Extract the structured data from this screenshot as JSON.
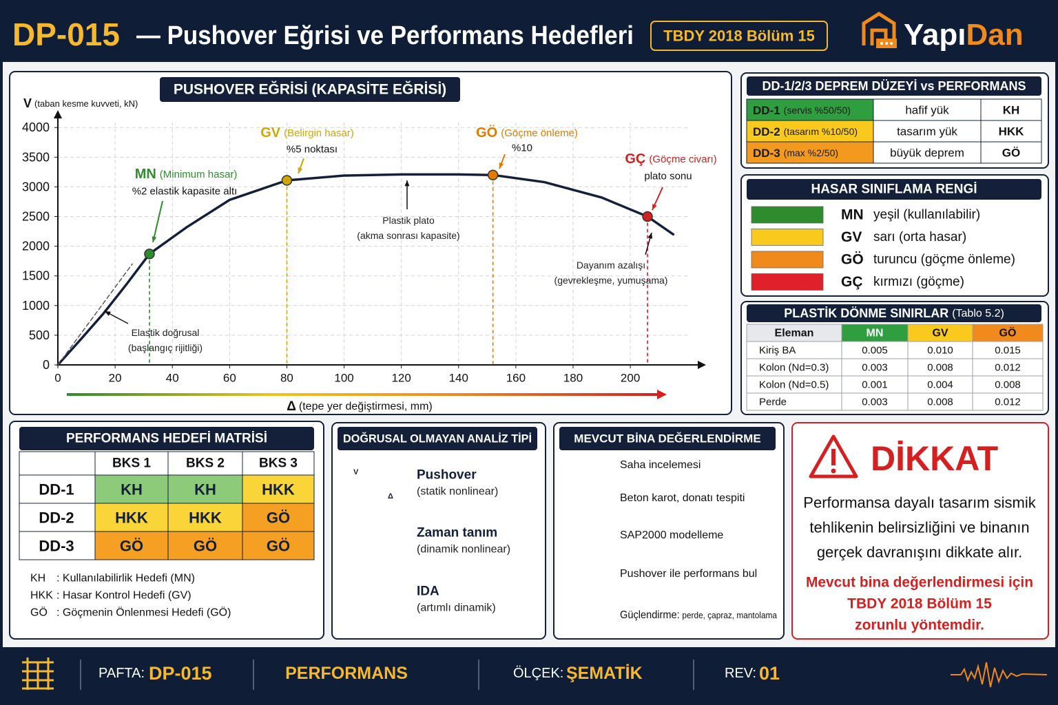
{
  "header": {
    "code": "DP-015",
    "title": "— Pushover Eğrisi ve Performans Hedefleri",
    "badge": "TBDY 2018 Bölüm 15",
    "logo": [
      "Yapı",
      "Dan"
    ]
  },
  "chart_data": {
    "type": "line",
    "title": "PUSHOVER EĞRİSİ (KAPASİTE EĞRİSİ)",
    "y_symbol": "V",
    "y_label": "(taban kesme kuvveti, kN)",
    "x_symbol": "Δ",
    "x_label": "(tepe yer değiştirmesi, mm)",
    "xlim": [
      0,
      225
    ],
    "ylim": [
      0,
      4200
    ],
    "xticks": [
      0,
      20,
      40,
      60,
      80,
      100,
      120,
      140,
      160,
      180,
      200
    ],
    "yticks": [
      0,
      500,
      1000,
      1500,
      2000,
      2500,
      3000,
      3500,
      4000
    ],
    "grid": true,
    "series": [
      {
        "color": "#14203a",
        "x": [
          0,
          8,
          16,
          24,
          32,
          45,
          60,
          80,
          100,
          120,
          140,
          152,
          170,
          190,
          206,
          215
        ],
        "values": [
          0,
          430,
          870,
          1360,
          1870,
          2320,
          2780,
          3110,
          3190,
          3210,
          3210,
          3200,
          3080,
          2820,
          2500,
          2200
        ]
      },
      {
        "color": "#555555",
        "dashed": true,
        "x": [
          0,
          26
        ],
        "values": [
          0,
          1700
        ]
      }
    ],
    "points": [
      {
        "label": "MN",
        "desc": "(Minimum hasar)",
        "note": "%2 elastik kapasite altı",
        "x": 32,
        "y": 1870,
        "color": "#2e8b2e"
      },
      {
        "label": "GV",
        "desc": "(Belirgin hasar)",
        "note": "%5 noktası",
        "x": 80,
        "y": 3110,
        "color": "#d2a600"
      },
      {
        "label": "GÖ",
        "desc": "(Göçme önleme)",
        "note": "%10",
        "x": 152,
        "y": 3200,
        "color": "#e07b00"
      },
      {
        "label": "GÇ",
        "desc": "(Göçme civarı)",
        "note": "plato sonu",
        "x": 206,
        "y": 2500,
        "color": "#d42020"
      }
    ],
    "annotations": [
      {
        "lines": [
          "Elastik doğrusal",
          "(başlangıç rijitliği)"
        ]
      },
      {
        "lines": [
          "Plastik plato",
          "(akma sonrası kapasite)"
        ]
      },
      {
        "lines": [
          "Dayanım azalışı",
          "(gevrekleşme, yumuşama)"
        ]
      }
    ]
  },
  "dd_table": {
    "title": "DD-1/2/3 DEPREM DÜZEYİ vs PERFORMANS",
    "rows": [
      {
        "code": "DD-1",
        "desc": "(servis %50/50)",
        "load": "hafif yük",
        "target": "KH",
        "color": "#2e9e3e"
      },
      {
        "code": "DD-2",
        "desc": "(tasarım %10/50)",
        "load": "tasarım yük",
        "target": "HKK",
        "color": "#f9c91e"
      },
      {
        "code": "DD-3",
        "desc": "(max %2/50)",
        "load": "büyük deprem",
        "target": "GÖ",
        "color": "#f39a1e"
      }
    ]
  },
  "damage_colors": {
    "title": "HASAR SINIFLAMA RENGİ",
    "items": [
      {
        "code": "MN",
        "text": "yeşil (kullanılabilir)",
        "color": "#2e8b2e"
      },
      {
        "code": "GV",
        "text": "sarı (orta hasar)",
        "color": "#f9c91e"
      },
      {
        "code": "GÖ",
        "text": "turuncu (göçme önleme)",
        "color": "#f08a1c"
      },
      {
        "code": "GÇ",
        "text": "kırmızı (göçme)",
        "color": "#e0202a"
      }
    ]
  },
  "rotation_limits": {
    "title": "PLASTİK DÖNME SINIRLAR",
    "note": "(Tablo 5.2)",
    "header": [
      "Eleman",
      "MN",
      "GV",
      "GÖ"
    ],
    "header_colors": [
      "#e6e8ec",
      "#2e9e3e",
      "#f9c91e",
      "#f08a1c"
    ],
    "rows": [
      [
        "Kiriş BA",
        "0.005",
        "0.010",
        "0.015"
      ],
      [
        "Kolon (Nd=0.3)",
        "0.003",
        "0.008",
        "0.012"
      ],
      [
        "Kolon (Nd=0.5)",
        "0.001",
        "0.004",
        "0.008"
      ],
      [
        "Perde",
        "0.003",
        "0.008",
        "0.012"
      ]
    ]
  },
  "target_matrix": {
    "title": "PERFORMANS HEDEFİ MATRİSİ",
    "columns": [
      "BKS 1",
      "BKS 2",
      "BKS 3"
    ],
    "rows": [
      {
        "label": "DD-1",
        "cells": [
          "KH",
          "KH",
          "HKK"
        ]
      },
      {
        "label": "DD-2",
        "cells": [
          "HKK",
          "HKK",
          "GÖ"
        ]
      },
      {
        "label": "DD-3",
        "cells": [
          "GÖ",
          "GÖ",
          "GÖ"
        ]
      }
    ],
    "cell_colors": {
      "KH": "#8dcb7a",
      "HKK": "#f9d53a",
      "GÖ": "#f5a023"
    },
    "notes": [
      {
        "abbr": "KH",
        "text": ": Kullanılabilirlik Hedefi (MN)"
      },
      {
        "abbr": "HKK",
        "text": ": Hasar Kontrol Hedefi (GV)"
      },
      {
        "abbr": "GÖ",
        "text": ": Göçmenin Önlenmesi Hedefi (GÖ)"
      }
    ]
  },
  "analysis_types": {
    "title": "DOĞRUSAL OLMAYAN ANALİZ TİPİ",
    "icon_labels": [
      "V",
      "Δ"
    ],
    "items": [
      {
        "name": "Pushover",
        "desc": "(statik nonlinear)"
      },
      {
        "name": "Zaman tanım",
        "desc": "(dinamik nonlinear)"
      },
      {
        "name": "IDA",
        "desc": "(artımlı dinamik)"
      }
    ]
  },
  "existing_building": {
    "title": "MEVCUT BİNA DEĞERLENDİRME",
    "steps": [
      {
        "text": "Saha incelemesi"
      },
      {
        "text": "Beton karot, donatı tespiti"
      },
      {
        "text": "SAP2000 modelleme"
      },
      {
        "text": "Pushover ile performans bul"
      },
      {
        "text": "Güçlendirme:",
        "detail": "perde, çapraz, mantolama"
      }
    ]
  },
  "warning": {
    "title": "DİKKAT",
    "body": [
      "Performansa dayalı tasarım sismik",
      "tehlikenin belirsizliğini ve binanın",
      "gerçek davranışını dikkate alır."
    ],
    "emphasis": [
      "Mevcut bina değerlendirmesi için",
      "TBDY 2018 Bölüm 15",
      "zorunlu yöntemdir."
    ]
  },
  "footer": {
    "sheet_label": "PAFTA:",
    "sheet": "DP-015",
    "topic": "PERFORMANS",
    "scale_label": "ÖLÇEK:",
    "scale": "ŞEMATİK",
    "rev_label": "REV:",
    "rev": "01"
  }
}
